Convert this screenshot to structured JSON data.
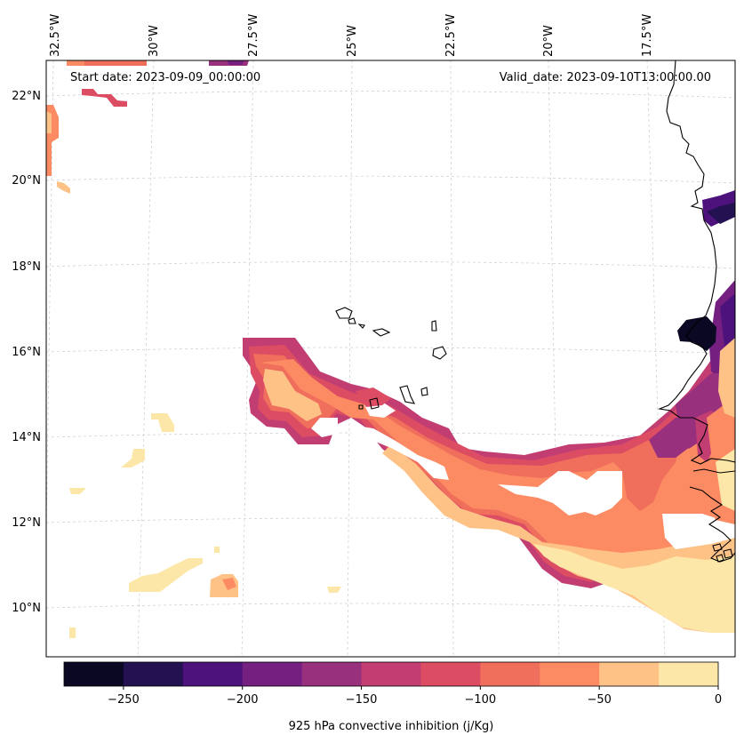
{
  "map": {
    "start_date": "Start date: 2023-09-09_00:00:00",
    "valid_date": "Valid_date: 2023-09-10T13:00:00.00",
    "lon_labels": [
      "32.5°W",
      "30°W",
      "27.5°W",
      "25°W",
      "22.5°W",
      "20°W",
      "17.5°W"
    ],
    "lat_labels": [
      "22°N",
      "20°N",
      "18°N",
      "16°N",
      "14°N",
      "12°N",
      "10°N"
    ]
  },
  "colorbar": {
    "label": "925 hPa convective inhibition (j/Kg)",
    "tick_labels": [
      "−250",
      "−200",
      "−150",
      "−100",
      "−50",
      "0"
    ],
    "colors": [
      "#0a0822",
      "#231151",
      "#4d127b",
      "#751f81",
      "#99307d",
      "#c13d72",
      "#dc4d64",
      "#f06e5c",
      "#fc8a62",
      "#fec287",
      "#fde7a8"
    ]
  }
}
